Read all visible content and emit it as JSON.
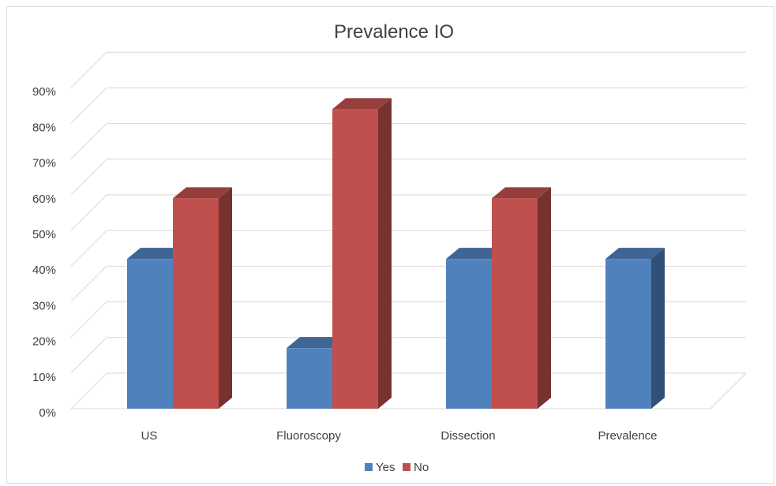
{
  "chart_data": {
    "type": "bar",
    "title": "Prevalence IO",
    "categories": [
      "US",
      "Fluoroscopy",
      "Dissection",
      "Prevalence"
    ],
    "series": [
      {
        "name": "Yes",
        "values": [
          0.42,
          0.17,
          0.42,
          0.42
        ],
        "color": "#4f81bd"
      },
      {
        "name": "No",
        "values": [
          0.59,
          0.84,
          0.59,
          null
        ],
        "color": "#c0504d"
      }
    ],
    "y_ticks": [
      "0%",
      "10%",
      "20%",
      "30%",
      "40%",
      "50%",
      "60%",
      "70%",
      "80%",
      "90%"
    ],
    "ylim": [
      0,
      0.9
    ],
    "grid": true,
    "legend_position": "bottom",
    "style": "3d-clustered-column"
  }
}
